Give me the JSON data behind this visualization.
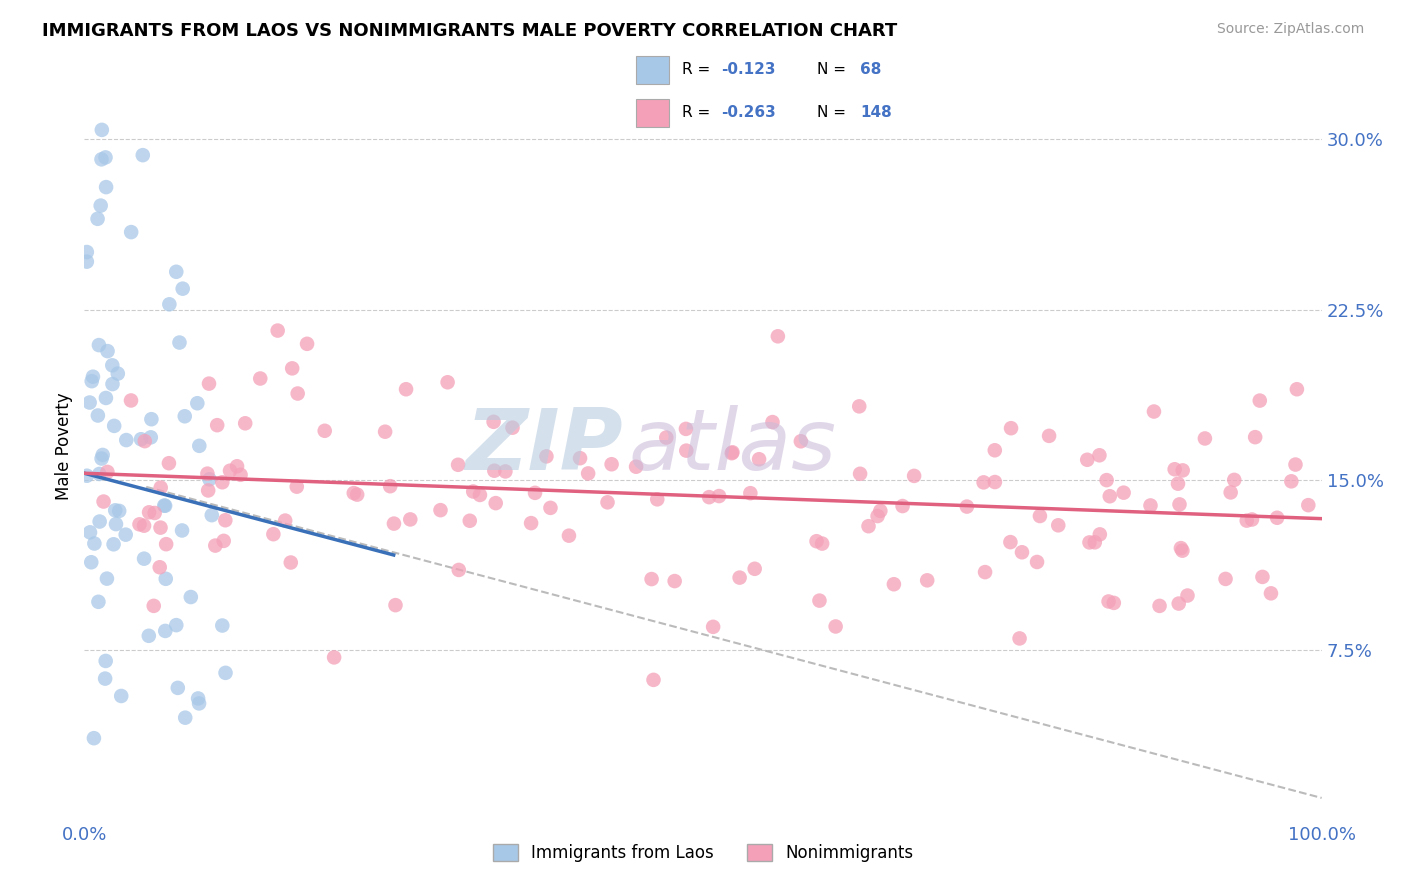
{
  "title": "IMMIGRANTS FROM LAOS VS NONIMMIGRANTS MALE POVERTY CORRELATION CHART",
  "source": "Source: ZipAtlas.com",
  "ylabel": "Male Poverty",
  "yticks": [
    0.075,
    0.15,
    0.225,
    0.3
  ],
  "ytick_labels": [
    "7.5%",
    "15.0%",
    "22.5%",
    "30.0%"
  ],
  "xlim": [
    0.0,
    1.0
  ],
  "ylim": [
    0.0,
    0.33
  ],
  "blue_R": -0.123,
  "blue_N": 68,
  "pink_R": -0.263,
  "pink_N": 148,
  "blue_color": "#a8c8e8",
  "pink_color": "#f4a0b8",
  "blue_line_color": "#3a70b8",
  "pink_line_color": "#e06080",
  "gray_dash_color": "#bbbbbb",
  "watermark_zip_color": "#c0d0e0",
  "watermark_atlas_color": "#d0c8d8",
  "legend_label_blue": "Immigrants from Laos",
  "legend_label_pink": "Nonimmigrants",
  "blue_line_x0": 0.0,
  "blue_line_y0": 0.153,
  "blue_line_x1": 0.25,
  "blue_line_y1": 0.117,
  "pink_line_x0": 0.0,
  "pink_line_y0": 0.153,
  "pink_line_x1": 1.0,
  "pink_line_y1": 0.133,
  "gray_line_x0": 0.05,
  "gray_line_y0": 0.147,
  "gray_line_x1": 1.0,
  "gray_line_y1": 0.01
}
